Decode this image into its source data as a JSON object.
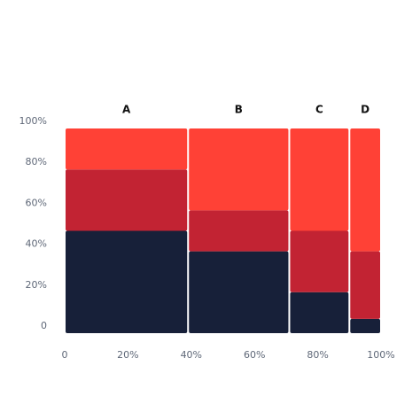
{
  "chart_data": {
    "type": "mekko",
    "categories": [
      "A",
      "B",
      "C",
      "D"
    ],
    "widths": [
      39,
      32,
      19,
      10
    ],
    "series": [
      {
        "color": "#172039",
        "values": [
          50,
          40,
          20,
          7
        ]
      },
      {
        "color": "#c22333",
        "values": [
          30,
          20,
          30,
          33
        ]
      },
      {
        "color": "#ff4136",
        "values": [
          20,
          40,
          50,
          60
        ]
      }
    ],
    "xlim": [
      0,
      100
    ],
    "xticks": [
      0,
      {
        "value": 20,
        "label": "20%"
      },
      {
        "value": 40,
        "label": "40%"
      },
      {
        "value": 60,
        "label": "60%"
      },
      {
        "value": 80,
        "label": "80%"
      },
      {
        "value": 100,
        "label": "100%"
      }
    ],
    "ylim": [
      0,
      100
    ],
    "yticks": [
      0,
      {
        "value": 20,
        "label": "20%"
      },
      {
        "value": 40,
        "label": "40%"
      },
      {
        "value": 60,
        "label": "60%"
      },
      {
        "value": 80,
        "label": "80%"
      },
      {
        "value": 100,
        "label": "100%"
      }
    ]
  }
}
